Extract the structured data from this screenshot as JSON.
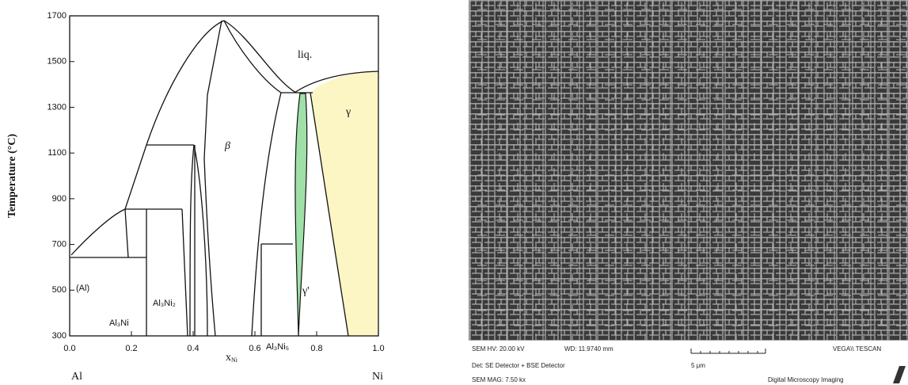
{
  "phase_diagram": {
    "y_axis_label": "Temperature (°C)",
    "x_axis_label": {
      "symbol": "x",
      "subscript": "Ni"
    },
    "yticks": [
      1700,
      1500,
      1300,
      1100,
      900,
      700,
      500,
      300
    ],
    "xticks": [
      "0.0",
      "0.2",
      "0.4",
      "0.6",
      "0.8",
      "1.0"
    ],
    "end_labels": [
      "Al",
      "Ni"
    ],
    "phases": {
      "liquid": "liq.",
      "beta": "β",
      "gamma": "γ",
      "gamma_prime": "γ'",
      "al": "(Al)",
      "al3ni": "Al₃Ni",
      "al3ni2": "Al₃Ni₂",
      "al3ni5": "Al₃Ni₅"
    }
  },
  "sem_image": {
    "hv": "SEM HV: 20.00 kV",
    "wd": "WD: 11.9740 mm",
    "detector": "Det: SE Detector + BSE Detector",
    "mag": "SEM MAG: 7.50 kx",
    "scale": "5 μm",
    "brand": "VEGA\\\\ TESCAN",
    "footer": "Digital Microscopy Imaging"
  }
}
